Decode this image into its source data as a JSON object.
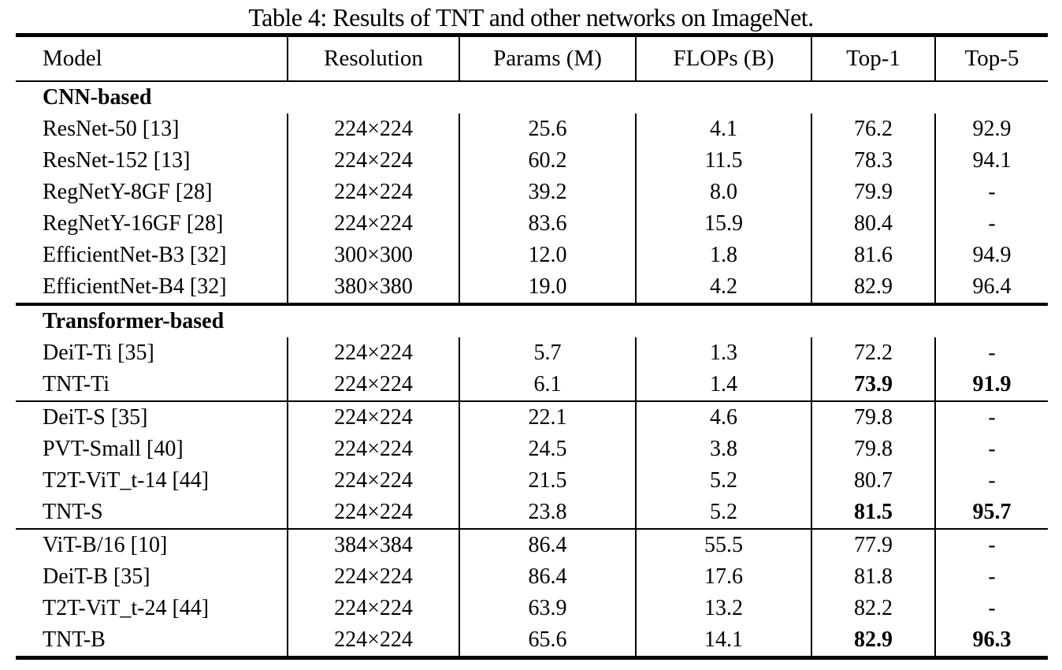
{
  "caption": "Table 4: Results of TNT and other networks on ImageNet.",
  "chart_data": {
    "type": "table",
    "title": "Table 4: Results of TNT and other networks on ImageNet.",
    "columns": [
      "Model",
      "Resolution",
      "Params (M)",
      "FLOPs (B)",
      "Top-1",
      "Top-5"
    ],
    "sections": [
      {
        "label": "CNN-based",
        "groups": [
          {
            "rows": [
              {
                "model": "ResNet-50 [13]",
                "resolution": "224×224",
                "params": "25.6",
                "flops": "4.1",
                "top1": "76.2",
                "top5": "92.9",
                "best": false
              },
              {
                "model": "ResNet-152 [13]",
                "resolution": "224×224",
                "params": "60.2",
                "flops": "11.5",
                "top1": "78.3",
                "top5": "94.1",
                "best": false
              },
              {
                "model": "RegNetY-8GF [28]",
                "resolution": "224×224",
                "params": "39.2",
                "flops": "8.0",
                "top1": "79.9",
                "top5": "-",
                "best": false
              },
              {
                "model": "RegNetY-16GF [28]",
                "resolution": "224×224",
                "params": "83.6",
                "flops": "15.9",
                "top1": "80.4",
                "top5": "-",
                "best": false
              },
              {
                "model": "EfficientNet-B3 [32]",
                "resolution": "300×300",
                "params": "12.0",
                "flops": "1.8",
                "top1": "81.6",
                "top5": "94.9",
                "best": false
              },
              {
                "model": "EfficientNet-B4 [32]",
                "resolution": "380×380",
                "params": "19.0",
                "flops": "4.2",
                "top1": "82.9",
                "top5": "96.4",
                "best": false
              }
            ]
          }
        ]
      },
      {
        "label": "Transformer-based",
        "groups": [
          {
            "rows": [
              {
                "model": "DeiT-Ti [35]",
                "resolution": "224×224",
                "params": "5.7",
                "flops": "1.3",
                "top1": "72.2",
                "top5": "-",
                "best": false
              },
              {
                "model": "TNT-Ti",
                "resolution": "224×224",
                "params": "6.1",
                "flops": "1.4",
                "top1": "73.9",
                "top5": "91.9",
                "best": true
              }
            ]
          },
          {
            "rows": [
              {
                "model": "DeiT-S [35]",
                "resolution": "224×224",
                "params": "22.1",
                "flops": "4.6",
                "top1": "79.8",
                "top5": "-",
                "best": false
              },
              {
                "model": "PVT-Small [40]",
                "resolution": "224×224",
                "params": "24.5",
                "flops": "3.8",
                "top1": "79.8",
                "top5": "-",
                "best": false
              },
              {
                "model": "T2T-ViT_t-14 [44]",
                "resolution": "224×224",
                "params": "21.5",
                "flops": "5.2",
                "top1": "80.7",
                "top5": "-",
                "best": false
              },
              {
                "model": "TNT-S",
                "resolution": "224×224",
                "params": "23.8",
                "flops": "5.2",
                "top1": "81.5",
                "top5": "95.7",
                "best": true
              }
            ]
          },
          {
            "rows": [
              {
                "model": "ViT-B/16 [10]",
                "resolution": "384×384",
                "params": "86.4",
                "flops": "55.5",
                "top1": "77.9",
                "top5": "-",
                "best": false
              },
              {
                "model": "DeiT-B [35]",
                "resolution": "224×224",
                "params": "86.4",
                "flops": "17.6",
                "top1": "81.8",
                "top5": "-",
                "best": false
              },
              {
                "model": "T2T-ViT_t-24 [44]",
                "resolution": "224×224",
                "params": "63.9",
                "flops": "13.2",
                "top1": "82.2",
                "top5": "-",
                "best": false
              },
              {
                "model": "TNT-B",
                "resolution": "224×224",
                "params": "65.6",
                "flops": "14.1",
                "top1": "82.9",
                "top5": "96.3",
                "best": true
              }
            ]
          }
        ]
      }
    ]
  }
}
